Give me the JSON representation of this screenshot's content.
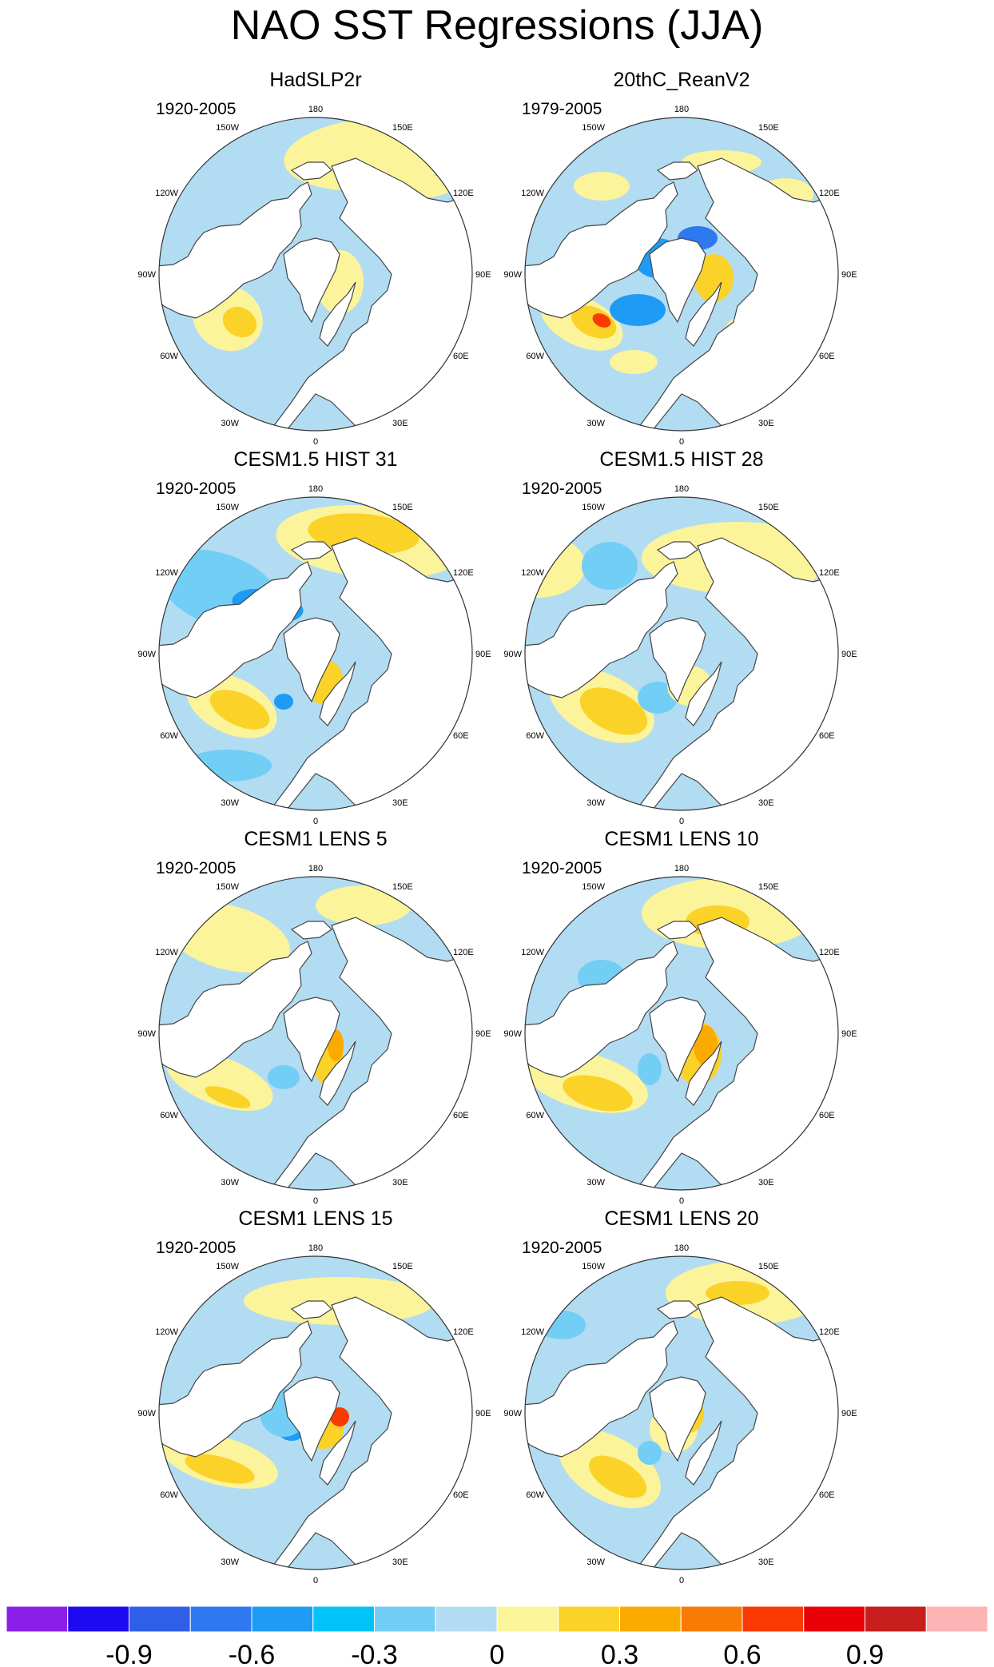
{
  "title": "NAO SST Regressions (JJA)",
  "panels": [
    {
      "title": "HadSLP2r",
      "years": "1920-2005",
      "pattern": "had"
    },
    {
      "title": "20thC_ReanV2",
      "years": "1979-2005",
      "pattern": "rean"
    },
    {
      "title": "CESM1.5 HIST 31",
      "years": "1920-2005",
      "pattern": "h31"
    },
    {
      "title": "CESM1.5 HIST 28",
      "years": "1920-2005",
      "pattern": "h28"
    },
    {
      "title": "CESM1 LENS 5",
      "years": "1920-2005",
      "pattern": "l5"
    },
    {
      "title": "CESM1 LENS 10",
      "years": "1920-2005",
      "pattern": "l10"
    },
    {
      "title": "CESM1 LENS 15",
      "years": "1920-2005",
      "pattern": "l15"
    },
    {
      "title": "CESM1 LENS 20",
      "years": "1920-2005",
      "pattern": "l20"
    }
  ],
  "longitude_labels": [
    "180",
    "150E",
    "120E",
    "90E",
    "60E",
    "30E",
    "0",
    "30W",
    "60W",
    "90W",
    "120W",
    "150W"
  ],
  "colorbar": {
    "colors": [
      "#8b1fe8",
      "#1e0af0",
      "#2f5fe8",
      "#2f79f0",
      "#1e9cf5",
      "#00c4f8",
      "#72cef5",
      "#b2dcf2",
      "#fcf49a",
      "#fbd228",
      "#fbaa00",
      "#f97a05",
      "#fa3a00",
      "#ea0008",
      "#c71d1d",
      "#fcb4b4"
    ],
    "tick_labels": [
      "-0.9",
      "-0.6",
      "-0.3",
      "0",
      "0.3",
      "0.6",
      "0.9"
    ],
    "tick_values": [
      -0.9,
      -0.6,
      -0.3,
      0,
      0.3,
      0.6,
      0.9
    ],
    "levels": [
      -1.05,
      -0.9,
      -0.75,
      -0.6,
      -0.45,
      -0.3,
      -0.15,
      0,
      0.15,
      0.3,
      0.45,
      0.6,
      0.75,
      0.9,
      1.05
    ]
  },
  "colors": {
    "ocean_neg1": "#b2dcf2",
    "ocean_neg2": "#72cef5",
    "ocean_neg3": "#1e9cf5",
    "ocean_neg4": "#2f79f0",
    "ocean_pos1": "#fcf49a",
    "ocean_pos2": "#fbd228",
    "ocean_pos3": "#fbaa00",
    "ocean_pos4": "#fa3a00",
    "land": "#ffffff",
    "coast": "#444444"
  }
}
